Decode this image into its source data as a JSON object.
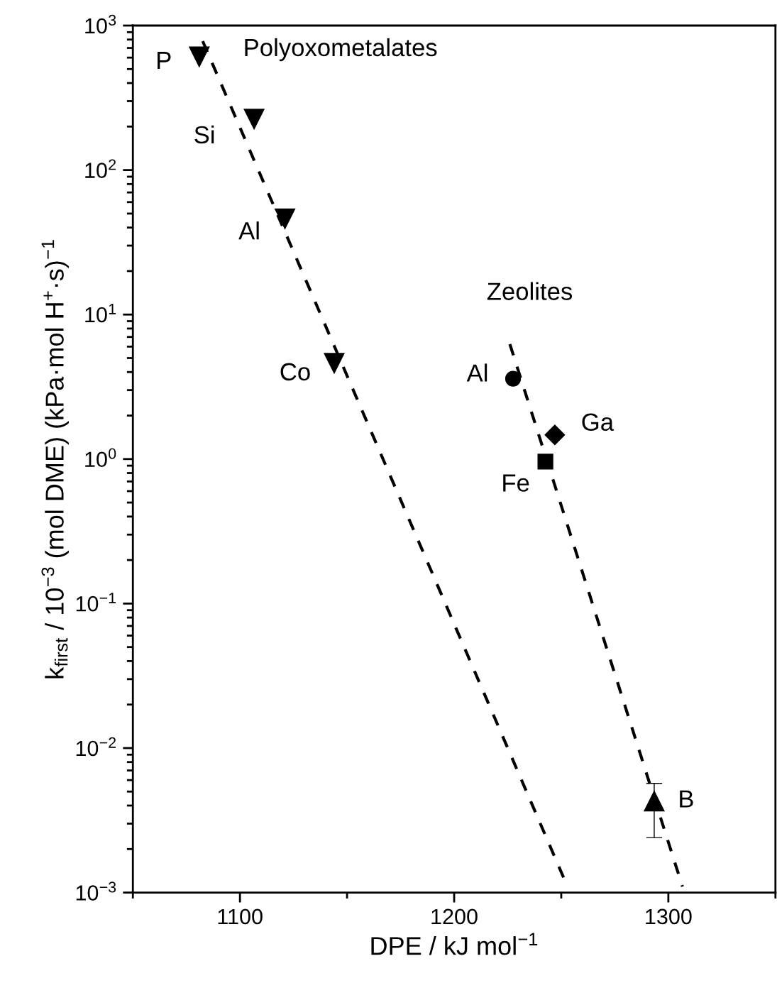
{
  "chart_data": {
    "type": "scatter",
    "xlabel": "DPE / kJ mol$^{−1}$",
    "ylabel": "k$_{first}$ / 10$^{−3}$ (mol DME) (kPa·mol H$^{+}$·s)$^{−1}$",
    "log": "y",
    "xlim": [
      1050,
      1350
    ],
    "xticks": [
      1100,
      1200,
      1300
    ],
    "ylim": [
      0.001,
      1000
    ],
    "yticks": [
      {
        "value": 0.001,
        "label": "10$^{−3}$"
      },
      {
        "value": 0.01,
        "label": "10$^{−2}$"
      },
      {
        "value": 0.1,
        "label": "10$^{−1}$"
      },
      {
        "value": 1,
        "label": "10$^{0}$"
      },
      {
        "value": 10,
        "label": "10$^{1}$"
      },
      {
        "value": 100,
        "label": "10$^{2}$"
      },
      {
        "value": 1000,
        "label": "10$^{3}$"
      }
    ],
    "grid": false,
    "legend": false,
    "series": [
      {
        "type": "scatter",
        "marker": "triangle_down",
        "color": "#000000",
        "x": [
          1081,
          1106.6,
          1121,
          1144
        ],
        "values": [
          608,
          225,
          46,
          4.6
        ]
      },
      {
        "type": "scatter",
        "marker": "circle",
        "color": "#000000",
        "x": [
          1227.5
        ],
        "values": [
          3.6
        ]
      },
      {
        "type": "scatter",
        "marker": "diamond",
        "color": "#000000",
        "x": [
          1247
        ],
        "values": [
          1.47
        ]
      },
      {
        "type": "scatter",
        "marker": "square",
        "color": "#000000",
        "x": [
          1242.6
        ],
        "values": [
          0.96
        ]
      },
      {
        "type": "scatter",
        "marker": "triangle",
        "color": "#000000",
        "x": [
          1293.4
        ],
        "values": [
          0.0043
        ],
        "errors": [
          [
            0.0024,
            0.0057
          ]
        ]
      },
      {
        "type": "line",
        "name": "Polyoxometalates",
        "line_style": "dashed",
        "color": "#000000",
        "x": [
          1082.6,
          1251.5
        ],
        "values": [
          780,
          0.00123
        ]
      },
      {
        "type": "line",
        "name": "Zeolites",
        "line_style": "dashed",
        "color": "#000000",
        "x": [
          1226,
          1306.6
        ],
        "values": [
          6.25,
          0.0011
        ]
      }
    ],
    "annotations": [
      {
        "text": "P",
        "x": 1081,
        "y": 608
      },
      {
        "text": "Si",
        "x": 1106.6,
        "y": 225
      },
      {
        "text": "Al",
        "x": 1121,
        "y": 46
      },
      {
        "text": "Co",
        "x": 1144,
        "y": 4.6
      },
      {
        "text": "Al",
        "x": 1227.5,
        "y": 3.6
      },
      {
        "text": "Ga",
        "x": 1247,
        "y": 1.47
      },
      {
        "text": "Fe",
        "x": 1242.6,
        "y": 0.96
      },
      {
        "text": "B",
        "x": 1293.4,
        "y": 0.0043
      }
    ]
  }
}
